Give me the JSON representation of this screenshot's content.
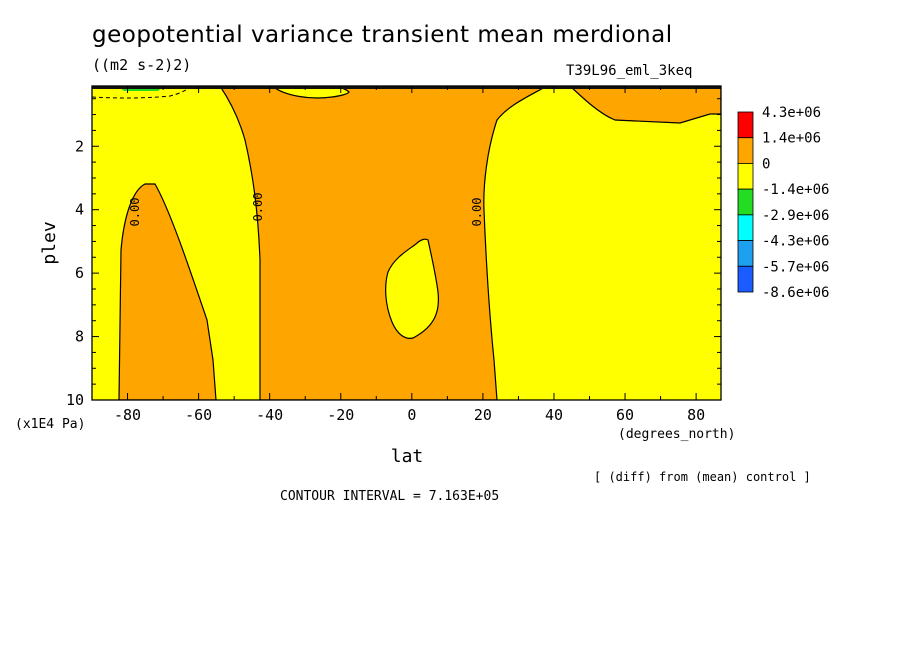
{
  "title": "geopotential variance transient mean merdional",
  "units": "((m2 s-2)2)",
  "experiment": "T39L96_eml_3keq",
  "diff_note": "[ (diff) from (mean) control ]",
  "contour_interval": "CONTOUR INTERVAL = 7.163E+05",
  "chart_data": {
    "type": "heatmap",
    "variant": "latitude-pressure filled contour",
    "xlabel": "lat",
    "xunits": "(degrees_north)",
    "ylabel": "plev",
    "yunits": "(x1E4 Pa)",
    "xlim": [
      -90,
      87
    ],
    "ylim": [
      10,
      0.1
    ],
    "y_inverted": true,
    "x_ticks": [
      -80,
      -60,
      -40,
      -20,
      0,
      20,
      40,
      60,
      80
    ],
    "x_tick_labels": [
      "-80",
      "-60",
      "-40",
      "-20",
      "0",
      "20",
      "40",
      "60",
      "80"
    ],
    "y_ticks": [
      2,
      4,
      6,
      8,
      10
    ],
    "y_tick_labels": [
      "2",
      "4",
      "6",
      "8",
      "10"
    ],
    "contour_labels": [
      "0.00",
      "0.00",
      "0.00"
    ],
    "colorbar": {
      "levels": [
        "4.3e+06",
        "1.4e+06",
        "0",
        "-1.4e+06",
        "-2.9e+06",
        "-4.3e+06",
        "-5.7e+06",
        "-8.6e+06"
      ],
      "colors": [
        "#ff0000",
        "#ffa500",
        "#ffff00",
        "#22dd22",
        "#00ffff",
        "#1ea0f0",
        "#1a5cff"
      ]
    },
    "regions": [
      {
        "name": "sh-high-lat-negative",
        "band": "0 to -1.4e+06",
        "color": "#ffff00",
        "lat_range": [
          -90,
          -76
        ],
        "plev_range": [
          0.3,
          10
        ]
      },
      {
        "name": "sh-mid-lat-positive",
        "band": "0 to 1.4e+06",
        "color": "#ffa500",
        "lat_range": [
          -82,
          -54
        ],
        "plev_range": [
          3.2,
          10
        ]
      },
      {
        "name": "sh-subtropics-negative",
        "band": "0 to -1.4e+06",
        "color": "#ffff00",
        "lat_range": [
          -65,
          -43
        ],
        "plev_range": [
          0.1,
          10
        ]
      },
      {
        "name": "tropics-positive",
        "band": "0 to 1.4e+06",
        "color": "#ffa500",
        "lat_range": [
          -42,
          26
        ],
        "plev_range": [
          0.1,
          10
        ]
      },
      {
        "name": "equatorial-negative-pocket",
        "band": "0 to -1.4e+06",
        "color": "#ffff00",
        "lat_range": [
          -6,
          6
        ],
        "plev_range": [
          4.9,
          8.1
        ]
      },
      {
        "name": "nh-negative",
        "band": "0 to -1.4e+06",
        "color": "#ffff00",
        "lat_range": [
          20,
          87
        ],
        "plev_range": [
          0.1,
          10
        ]
      },
      {
        "name": "nh-upper-positive",
        "band": "0 to 1.4e+06",
        "color": "#ffa500",
        "lat_range": [
          46,
          87
        ],
        "plev_range": [
          0.1,
          1.1
        ]
      }
    ]
  }
}
